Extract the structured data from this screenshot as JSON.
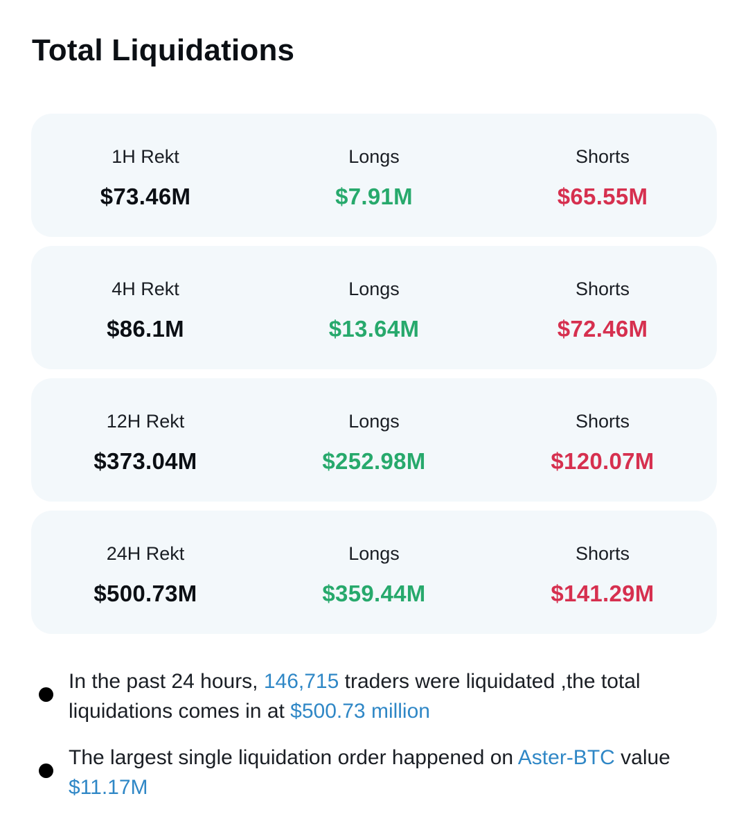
{
  "title": "Total Liquidations",
  "colors": {
    "total": "#0b0f14",
    "longs": "#27a96c",
    "shorts": "#d6304f",
    "highlight": "#2f87c6",
    "card_bg": "#f3f8fb"
  },
  "rows": [
    {
      "period_label": "1H Rekt",
      "total": "$73.46M",
      "longs_label": "Longs",
      "longs": "$7.91M",
      "shorts_label": "Shorts",
      "shorts": "$65.55M"
    },
    {
      "period_label": "4H Rekt",
      "total": "$86.1M",
      "longs_label": "Longs",
      "longs": "$13.64M",
      "shorts_label": "Shorts",
      "shorts": "$72.46M"
    },
    {
      "period_label": "12H Rekt",
      "total": "$373.04M",
      "longs_label": "Longs",
      "longs": "$252.98M",
      "shorts_label": "Shorts",
      "shorts": "$120.07M"
    },
    {
      "period_label": "24H Rekt",
      "total": "$500.73M",
      "longs_label": "Longs",
      "longs": "$359.44M",
      "shorts_label": "Shorts",
      "shorts": "$141.29M"
    }
  ],
  "notes": [
    {
      "part1": "In the past 24 hours, ",
      "traders_count": "146,715",
      "part2": " traders were liquidated ,the total liquidations comes in at ",
      "total_amount": "$500.73 million"
    },
    {
      "part1": "The largest single liquidation order happened on ",
      "pair": "Aster-BTC",
      "part2": " value ",
      "value": "$11.17M"
    }
  ]
}
